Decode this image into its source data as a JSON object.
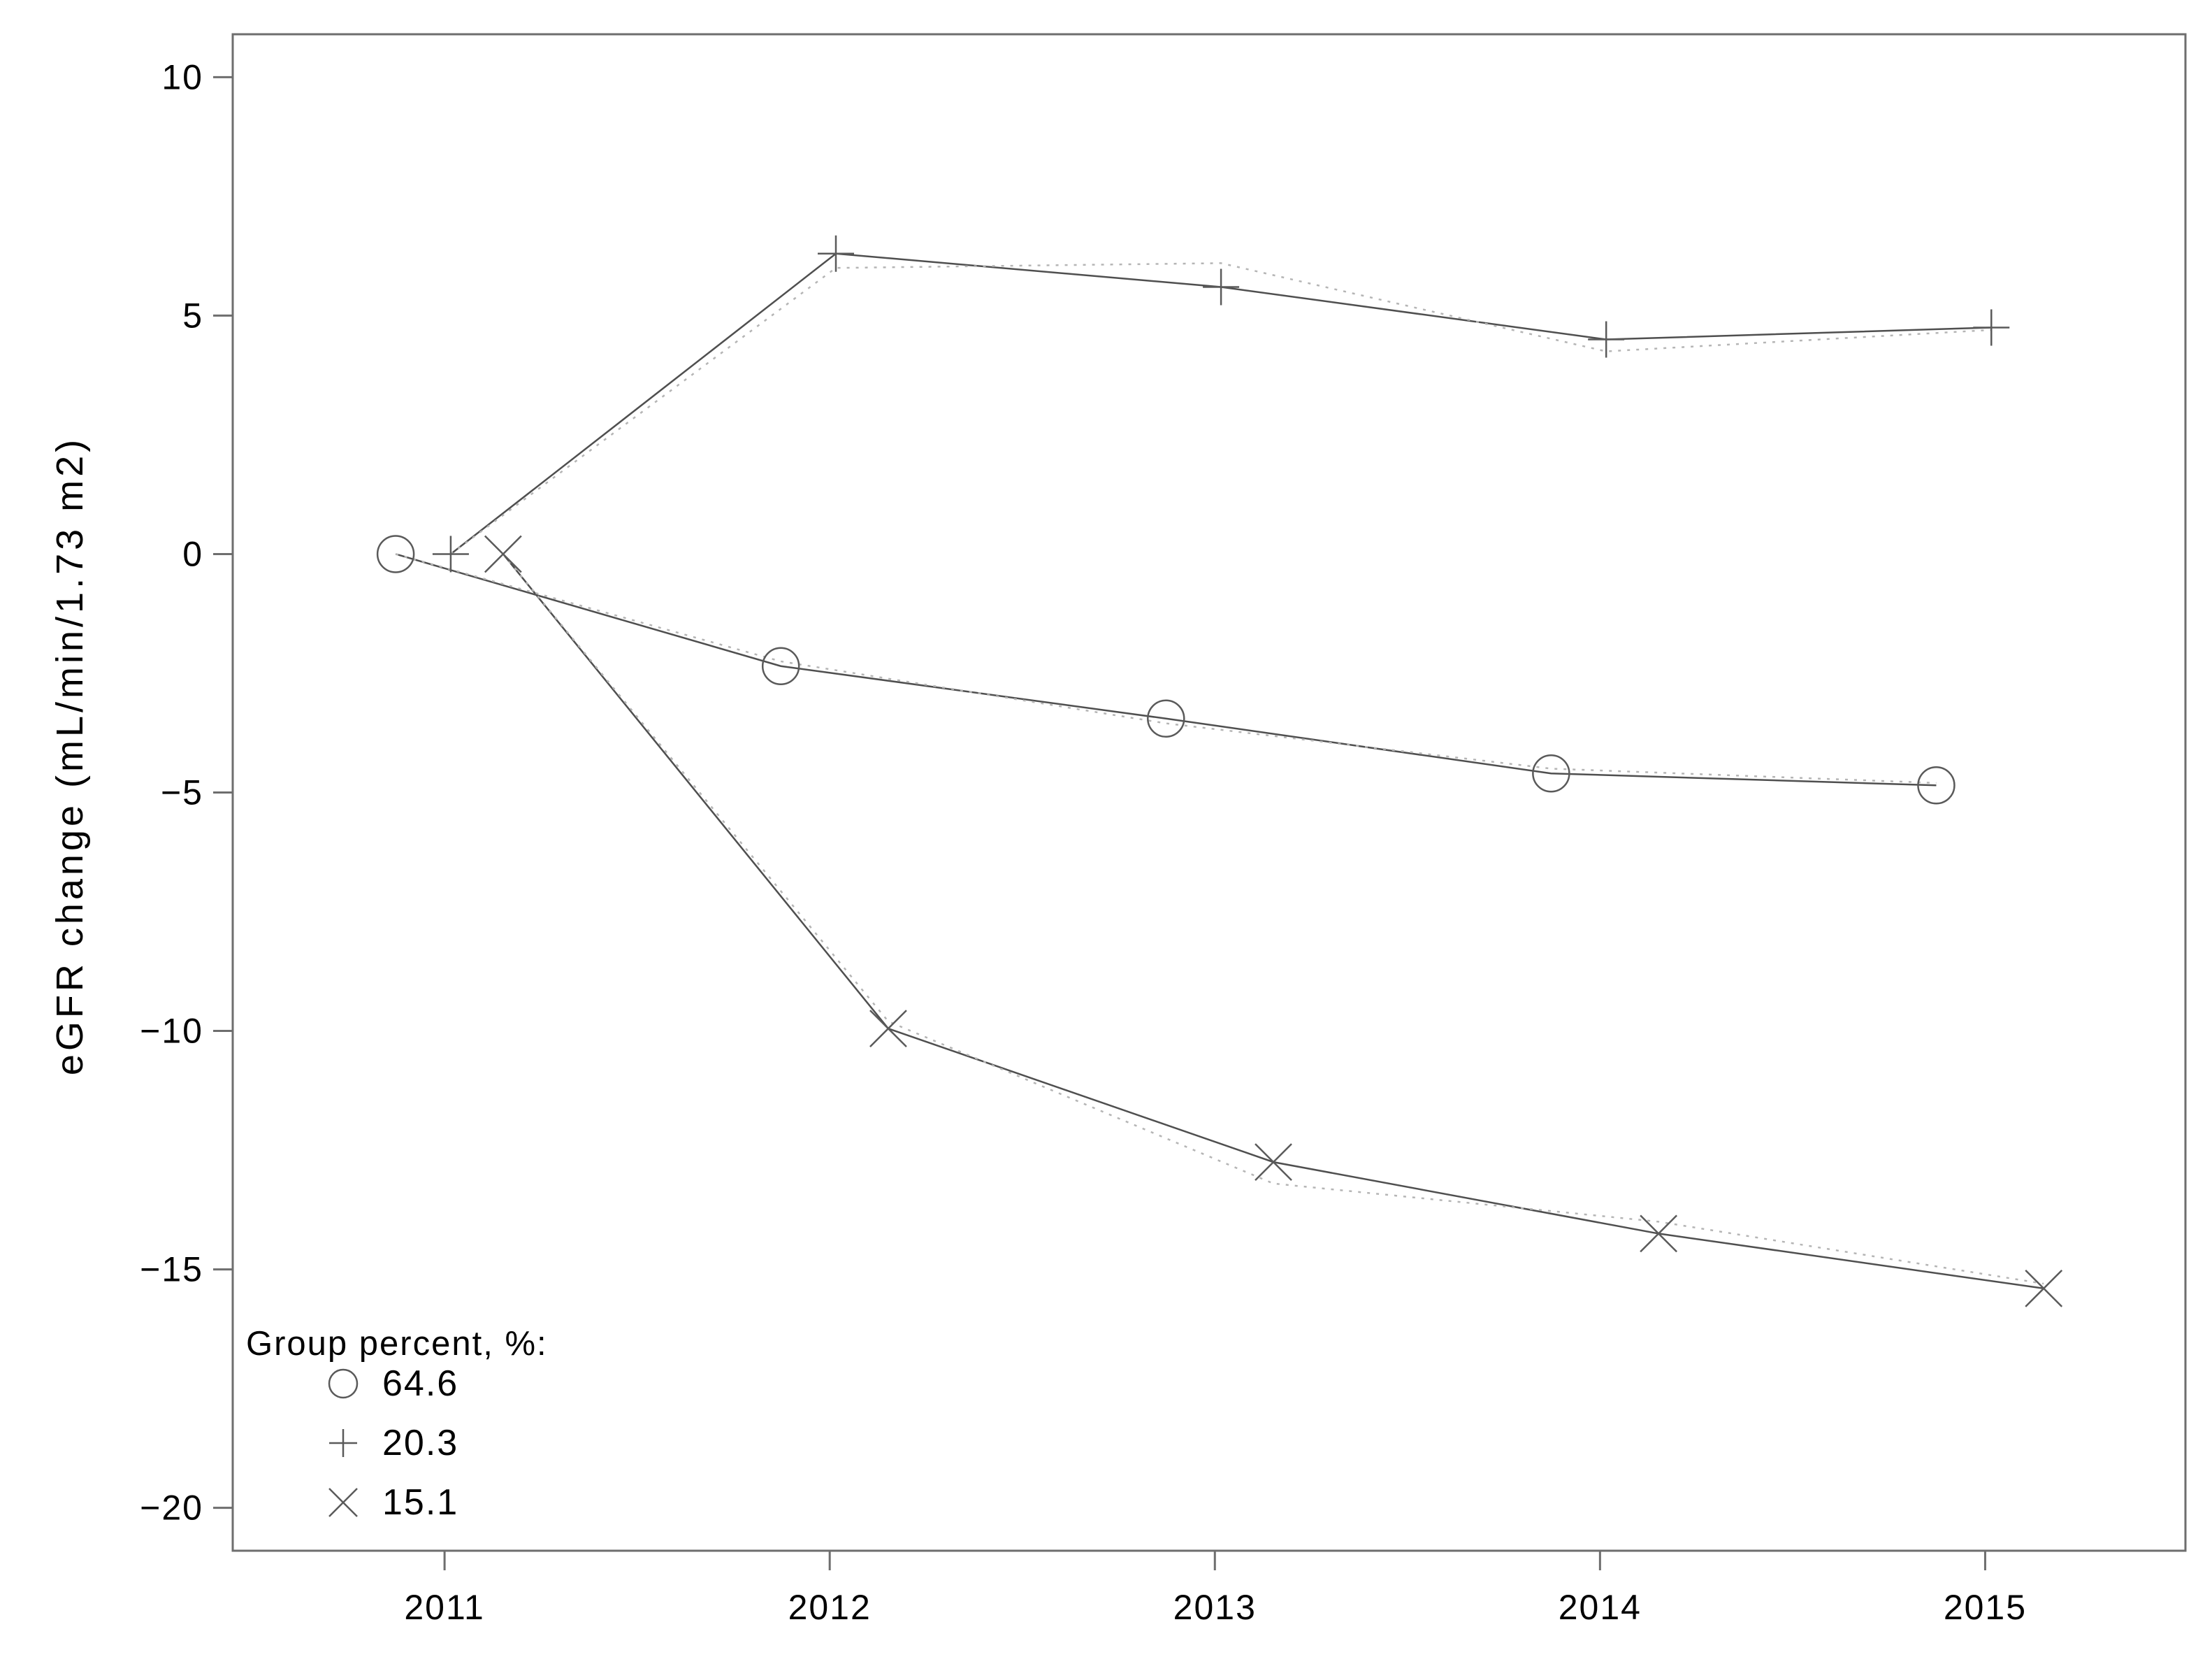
{
  "chart_data": {
    "type": "line",
    "title": "",
    "xlabel": "",
    "ylabel": "eGFR change (mL/min/1.73 m2)",
    "x": [
      2011,
      2012,
      2013,
      2014,
      2015
    ],
    "xticks": [
      "2011",
      "2012",
      "2013",
      "2014",
      "2015"
    ],
    "yticks": [
      10,
      5,
      0,
      -5,
      -10,
      -15,
      -20
    ],
    "xlim": [
      2010.45,
      2015.52
    ],
    "ylim": [
      -20.9,
      10.9
    ],
    "grid": false,
    "frame": "full-box",
    "legend": {
      "title": "Group percent, %:",
      "position": "inside-bottom-left",
      "entries": [
        {
          "label": "64.6",
          "marker": "circle-icon"
        },
        {
          "label": "20.3",
          "marker": "plus-icon"
        },
        {
          "label": "15.1",
          "marker": "x-icon"
        }
      ]
    },
    "series": [
      {
        "name": "64.6",
        "marker": "circle",
        "line_style": "solid",
        "x_offset_years": -0.127,
        "values": [
          0,
          -2.35,
          -3.45,
          -4.6,
          -4.85
        ]
      },
      {
        "name": "20.3",
        "marker": "plus",
        "line_style": "solid",
        "x_offset_years": 0.016,
        "values": [
          0,
          6.3,
          5.6,
          4.5,
          4.75
        ]
      },
      {
        "name": "15.1",
        "marker": "x",
        "line_style": "solid",
        "x_offset_years": 0.152,
        "values": [
          0,
          -9.95,
          -12.75,
          -14.25,
          -15.4
        ]
      }
    ],
    "dotted_companion_series": [
      {
        "name": "64.6-dotted",
        "values": [
          0,
          -2.25,
          -3.55,
          -4.5,
          -4.8
        ]
      },
      {
        "name": "20.3-dotted",
        "values": [
          0,
          6.0,
          6.1,
          4.25,
          4.7
        ]
      },
      {
        "name": "15.1-dotted",
        "values": [
          0,
          -9.8,
          -13.2,
          -14.0,
          -15.3
        ]
      }
    ],
    "colors": {
      "background": "#ffffff",
      "axis": "#6e6e6e",
      "solid_line": "#4f4f4f",
      "dotted_line": "#b5b5b5",
      "marker": "#5a5a5a",
      "text": "#000000"
    }
  }
}
